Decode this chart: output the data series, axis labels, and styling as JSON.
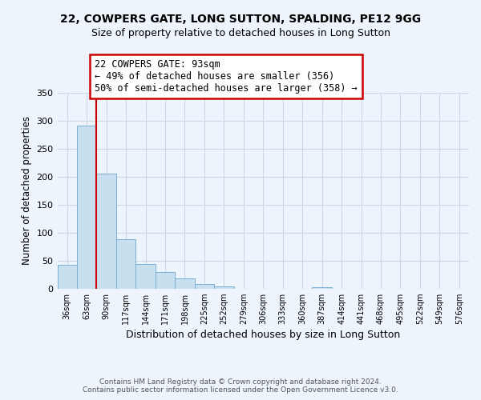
{
  "title1": "22, COWPERS GATE, LONG SUTTON, SPALDING, PE12 9GG",
  "title2": "Size of property relative to detached houses in Long Sutton",
  "xlabel": "Distribution of detached houses by size in Long Sutton",
  "ylabel": "Number of detached properties",
  "bin_labels": [
    "36sqm",
    "63sqm",
    "90sqm",
    "117sqm",
    "144sqm",
    "171sqm",
    "198sqm",
    "225sqm",
    "252sqm",
    "279sqm",
    "306sqm",
    "333sqm",
    "360sqm",
    "387sqm",
    "414sqm",
    "441sqm",
    "468sqm",
    "495sqm",
    "522sqm",
    "549sqm",
    "576sqm"
  ],
  "bar_values": [
    42,
    291,
    205,
    88,
    44,
    30,
    18,
    8,
    4,
    0,
    0,
    0,
    0,
    3,
    0,
    0,
    0,
    0,
    0,
    0,
    0
  ],
  "bar_color": "#c8dff0",
  "bar_edge_color": "#7bafd4",
  "vline_index": 2,
  "annotation_title": "22 COWPERS GATE: 93sqm",
  "annotation_line1": "← 49% of detached houses are smaller (356)",
  "annotation_line2": "50% of semi-detached houses are larger (358) →",
  "annotation_box_color": "#ffffff",
  "annotation_border_color": "#cc0000",
  "vline_color": "#cc0000",
  "ylim": [
    0,
    350
  ],
  "yticks": [
    0,
    50,
    100,
    150,
    200,
    250,
    300,
    350
  ],
  "footer1": "Contains HM Land Registry data © Crown copyright and database right 2024.",
  "footer2": "Contains public sector information licensed under the Open Government Licence v3.0.",
  "bg_color": "#eef4fb"
}
